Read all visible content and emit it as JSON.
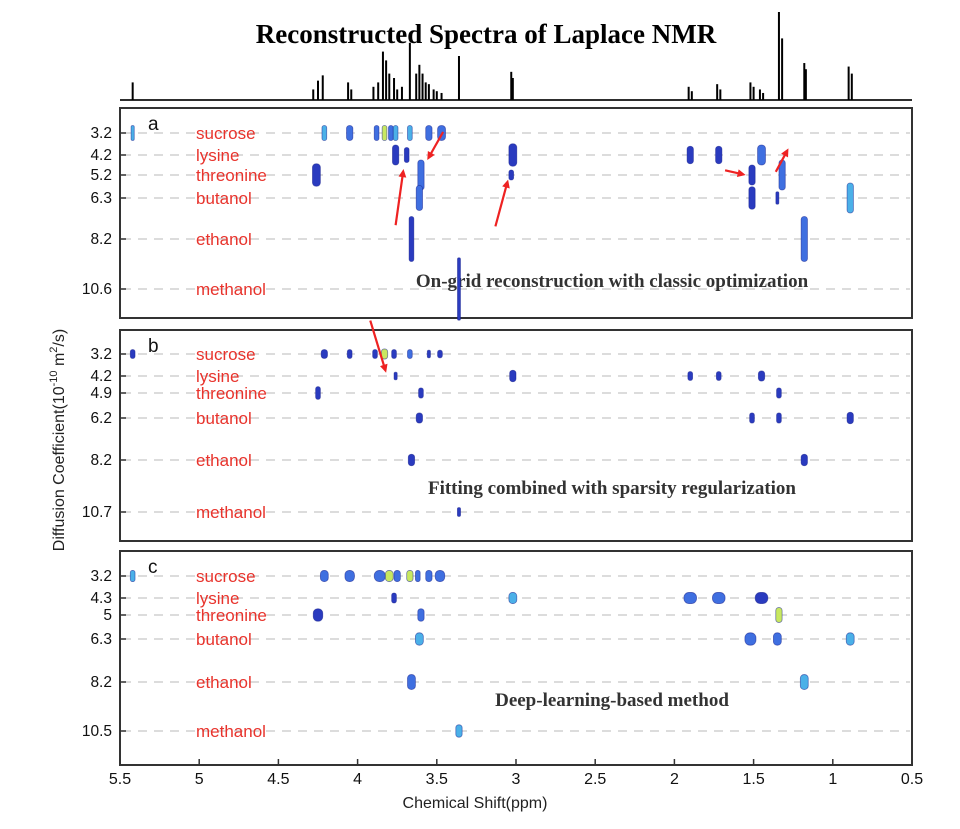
{
  "chart_data": {
    "type": "scatter",
    "title": "Reconstructed Spectra of Laplace NMR",
    "xlabel": "Chemical Shift(ppm)",
    "ylabel": "Diffusion Coefficient(10^-10 m^2/s)",
    "ylabel_parts": {
      "pre": "Diffusion Coefficient(10",
      "exp1": "-10",
      "mid": " m",
      "exp2": "2",
      "post": "/s)"
    },
    "xlim": [
      5.5,
      0.5
    ],
    "xticks": [
      5.5,
      5,
      4.5,
      4,
      3.5,
      3,
      2.5,
      2,
      1.5,
      1,
      0.5
    ],
    "xtick_labels": [
      "5.5",
      "5",
      "4.5",
      "4",
      "3.5",
      "3",
      "2.5",
      "2",
      "1.5",
      "1",
      "0.5"
    ],
    "colors": {
      "label": "#e8332c",
      "peak_dark": "#2a3bbf",
      "peak_mid": "#3f6fe0",
      "peak_light": "#4bb0e8",
      "peak_hot": "#c8e860",
      "arrow": "#ee2222",
      "grid": "#c8c8c8"
    },
    "spectrum_1d": [
      {
        "ppm": 5.42,
        "h": 0.2
      },
      {
        "ppm": 4.28,
        "h": 0.12
      },
      {
        "ppm": 4.25,
        "h": 0.22
      },
      {
        "ppm": 4.22,
        "h": 0.28
      },
      {
        "ppm": 4.06,
        "h": 0.2
      },
      {
        "ppm": 4.04,
        "h": 0.12
      },
      {
        "ppm": 3.9,
        "h": 0.15
      },
      {
        "ppm": 3.87,
        "h": 0.2
      },
      {
        "ppm": 3.84,
        "h": 0.55
      },
      {
        "ppm": 3.82,
        "h": 0.45
      },
      {
        "ppm": 3.8,
        "h": 0.3
      },
      {
        "ppm": 3.77,
        "h": 0.25
      },
      {
        "ppm": 3.75,
        "h": 0.12
      },
      {
        "ppm": 3.72,
        "h": 0.15
      },
      {
        "ppm": 3.67,
        "h": 0.65
      },
      {
        "ppm": 3.63,
        "h": 0.3
      },
      {
        "ppm": 3.61,
        "h": 0.4
      },
      {
        "ppm": 3.59,
        "h": 0.3
      },
      {
        "ppm": 3.57,
        "h": 0.2
      },
      {
        "ppm": 3.55,
        "h": 0.18
      },
      {
        "ppm": 3.52,
        "h": 0.12
      },
      {
        "ppm": 3.5,
        "h": 0.1
      },
      {
        "ppm": 3.47,
        "h": 0.08
      },
      {
        "ppm": 3.36,
        "h": 0.5
      },
      {
        "ppm": 3.03,
        "h": 0.32
      },
      {
        "ppm": 3.02,
        "h": 0.25
      },
      {
        "ppm": 1.91,
        "h": 0.15
      },
      {
        "ppm": 1.89,
        "h": 0.1
      },
      {
        "ppm": 1.73,
        "h": 0.18
      },
      {
        "ppm": 1.71,
        "h": 0.12
      },
      {
        "ppm": 1.52,
        "h": 0.2
      },
      {
        "ppm": 1.5,
        "h": 0.15
      },
      {
        "ppm": 1.46,
        "h": 0.12
      },
      {
        "ppm": 1.44,
        "h": 0.08
      },
      {
        "ppm": 1.34,
        "h": 1.0
      },
      {
        "ppm": 1.32,
        "h": 0.7
      },
      {
        "ppm": 1.18,
        "h": 0.42
      },
      {
        "ppm": 1.17,
        "h": 0.35
      },
      {
        "ppm": 0.9,
        "h": 0.38
      },
      {
        "ppm": 0.88,
        "h": 0.3
      }
    ],
    "panels": [
      {
        "letter": "a",
        "method": "On-grid reconstruction with classic optimization",
        "rows": [
          {
            "d": 3.2,
            "tick": "3.2",
            "compound": "sucrose"
          },
          {
            "d": 4.2,
            "tick": "4.2",
            "compound": "lysine"
          },
          {
            "d": 5.2,
            "tick": "5.2",
            "compound": "threonine"
          },
          {
            "d": 6.3,
            "tick": "6.3",
            "compound": "butanol"
          },
          {
            "d": 8.2,
            "tick": "8.2",
            "compound": "ethanol"
          },
          {
            "d": 10.6,
            "tick": "10.6",
            "compound": "methanol"
          }
        ],
        "peaks": [
          {
            "ppm": 5.42,
            "row": 0,
            "h": 0.6,
            "w": 0.02,
            "c": "light"
          },
          {
            "ppm": 4.21,
            "row": 0,
            "h": 0.6,
            "w": 0.03,
            "c": "light"
          },
          {
            "ppm": 4.05,
            "row": 0,
            "h": 0.6,
            "w": 0.04,
            "c": "mid"
          },
          {
            "ppm": 3.88,
            "row": 0,
            "h": 0.6,
            "w": 0.03,
            "c": "mid"
          },
          {
            "ppm": 3.83,
            "row": 0,
            "h": 0.6,
            "w": 0.03,
            "c": "hot"
          },
          {
            "ppm": 3.79,
            "row": 0,
            "h": 0.6,
            "w": 0.03,
            "c": "mid"
          },
          {
            "ppm": 3.76,
            "row": 0,
            "h": 0.6,
            "w": 0.03,
            "c": "light"
          },
          {
            "ppm": 3.67,
            "row": 0,
            "h": 0.6,
            "w": 0.03,
            "c": "light"
          },
          {
            "ppm": 3.55,
            "row": 0,
            "h": 0.6,
            "w": 0.04,
            "c": "mid"
          },
          {
            "ppm": 3.47,
            "row": 0,
            "h": 0.6,
            "w": 0.05,
            "c": "mid"
          },
          {
            "ppm": 3.76,
            "row": 1,
            "h": 0.8,
            "w": 0.04,
            "c": "dark"
          },
          {
            "ppm": 3.69,
            "row": 1,
            "h": 0.6,
            "w": 0.03,
            "c": "dark"
          },
          {
            "ppm": 3.02,
            "row": 1,
            "h": 0.9,
            "w": 0.05,
            "c": "dark"
          },
          {
            "ppm": 1.9,
            "row": 1,
            "h": 0.7,
            "w": 0.04,
            "c": "dark"
          },
          {
            "ppm": 1.72,
            "row": 1,
            "h": 0.7,
            "w": 0.04,
            "c": "dark"
          },
          {
            "ppm": 1.45,
            "row": 1,
            "h": 0.8,
            "w": 0.05,
            "c": "mid"
          },
          {
            "ppm": 4.26,
            "row": 2,
            "h": 0.9,
            "w": 0.05,
            "c": "dark"
          },
          {
            "ppm": 3.6,
            "row": 2,
            "h": 1.2,
            "w": 0.04,
            "c": "mid"
          },
          {
            "ppm": 3.03,
            "row": 2,
            "h": 0.4,
            "w": 0.03,
            "c": "dark"
          },
          {
            "ppm": 1.51,
            "row": 2,
            "h": 0.8,
            "w": 0.04,
            "c": "dark"
          },
          {
            "ppm": 1.32,
            "row": 2,
            "h": 1.2,
            "w": 0.04,
            "c": "mid"
          },
          {
            "ppm": 3.61,
            "row": 3,
            "h": 1.0,
            "w": 0.04,
            "c": "mid"
          },
          {
            "ppm": 1.51,
            "row": 3,
            "h": 0.9,
            "w": 0.04,
            "c": "dark"
          },
          {
            "ppm": 1.35,
            "row": 3,
            "h": 0.5,
            "w": 0.015,
            "c": "dark"
          },
          {
            "ppm": 0.89,
            "row": 3,
            "h": 1.2,
            "w": 0.04,
            "c": "light"
          },
          {
            "ppm": 3.66,
            "row": 4,
            "h": 1.8,
            "w": 0.03,
            "c": "dark"
          },
          {
            "ppm": 1.18,
            "row": 4,
            "h": 1.8,
            "w": 0.04,
            "c": "mid"
          },
          {
            "ppm": 3.36,
            "row": 5,
            "h": 2.5,
            "w": 0.012,
            "c": "dark"
          }
        ],
        "arrows": [
          {
            "ppm": 3.71,
            "row": 1.7,
            "dx": 0.05,
            "dy": 0.6
          },
          {
            "ppm": 3.56,
            "row": 1.25,
            "dx": -0.1,
            "dy": -0.3
          },
          {
            "ppm": 3.05,
            "row": 2.2,
            "dx": 0.08,
            "dy": 0.5
          },
          {
            "ppm": 1.55,
            "row": 2.0,
            "dx": 0.13,
            "dy": -0.05
          },
          {
            "ppm": 1.28,
            "row": 0.7,
            "dx": 0.08,
            "dy": 0.25
          }
        ]
      },
      {
        "letter": "b",
        "method": "Fitting combined with sparsity regularization",
        "rows": [
          {
            "d": 3.2,
            "tick": "3.2",
            "compound": "sucrose"
          },
          {
            "d": 4.2,
            "tick": "4.2",
            "compound": "lysine"
          },
          {
            "d": 4.9,
            "tick": "4.9",
            "compound": "threonine"
          },
          {
            "d": 6.2,
            "tick": "6.2",
            "compound": "butanol"
          },
          {
            "d": 8.2,
            "tick": "8.2",
            "compound": "ethanol"
          },
          {
            "d": 10.7,
            "tick": "10.7",
            "compound": "methanol"
          }
        ],
        "peaks": [
          {
            "ppm": 5.42,
            "row": 0,
            "h": 0.35,
            "w": 0.03,
            "c": "dark"
          },
          {
            "ppm": 4.21,
            "row": 0,
            "h": 0.35,
            "w": 0.04,
            "c": "dark"
          },
          {
            "ppm": 4.05,
            "row": 0,
            "h": 0.35,
            "w": 0.03,
            "c": "dark"
          },
          {
            "ppm": 3.89,
            "row": 0,
            "h": 0.35,
            "w": 0.03,
            "c": "dark"
          },
          {
            "ppm": 3.83,
            "row": 0,
            "h": 0.4,
            "w": 0.04,
            "c": "hot"
          },
          {
            "ppm": 3.77,
            "row": 0,
            "h": 0.35,
            "w": 0.03,
            "c": "dark"
          },
          {
            "ppm": 3.67,
            "row": 0,
            "h": 0.35,
            "w": 0.03,
            "c": "mid"
          },
          {
            "ppm": 3.55,
            "row": 0,
            "h": 0.3,
            "w": 0.02,
            "c": "dark"
          },
          {
            "ppm": 3.48,
            "row": 0,
            "h": 0.3,
            "w": 0.03,
            "c": "dark"
          },
          {
            "ppm": 3.76,
            "row": 1,
            "h": 0.3,
            "w": 0.02,
            "c": "dark"
          },
          {
            "ppm": 3.02,
            "row": 1,
            "h": 0.45,
            "w": 0.04,
            "c": "dark"
          },
          {
            "ppm": 1.9,
            "row": 1,
            "h": 0.35,
            "w": 0.03,
            "c": "dark"
          },
          {
            "ppm": 1.72,
            "row": 1,
            "h": 0.35,
            "w": 0.03,
            "c": "dark"
          },
          {
            "ppm": 1.45,
            "row": 1,
            "h": 0.4,
            "w": 0.04,
            "c": "dark"
          },
          {
            "ppm": 4.25,
            "row": 2,
            "h": 0.5,
            "w": 0.03,
            "c": "dark"
          },
          {
            "ppm": 3.6,
            "row": 2,
            "h": 0.4,
            "w": 0.03,
            "c": "dark"
          },
          {
            "ppm": 1.34,
            "row": 2,
            "h": 0.4,
            "w": 0.03,
            "c": "dark"
          },
          {
            "ppm": 3.61,
            "row": 3,
            "h": 0.4,
            "w": 0.04,
            "c": "dark"
          },
          {
            "ppm": 1.51,
            "row": 3,
            "h": 0.4,
            "w": 0.03,
            "c": "dark"
          },
          {
            "ppm": 1.34,
            "row": 3,
            "h": 0.4,
            "w": 0.03,
            "c": "dark"
          },
          {
            "ppm": 0.89,
            "row": 3,
            "h": 0.45,
            "w": 0.04,
            "c": "dark"
          },
          {
            "ppm": 3.66,
            "row": 4,
            "h": 0.45,
            "w": 0.04,
            "c": "dark"
          },
          {
            "ppm": 1.18,
            "row": 4,
            "h": 0.45,
            "w": 0.04,
            "c": "dark"
          },
          {
            "ppm": 3.36,
            "row": 5,
            "h": 0.35,
            "w": 0.02,
            "c": "dark"
          }
        ],
        "arrows": [
          {
            "ppm": 3.82,
            "row": 0.85,
            "dx": 0.1,
            "dy": -0.55
          }
        ]
      },
      {
        "letter": "c",
        "method": "Deep-learning-based method",
        "rows": [
          {
            "d": 3.2,
            "tick": "3.2",
            "compound": "sucrose"
          },
          {
            "d": 4.3,
            "tick": "4.3",
            "compound": "lysine"
          },
          {
            "d": 5.0,
            "tick": "5",
            "compound": "threonine"
          },
          {
            "d": 6.3,
            "tick": "6.3",
            "compound": "butanol"
          },
          {
            "d": 8.2,
            "tick": "8.2",
            "compound": "ethanol"
          },
          {
            "d": 10.5,
            "tick": "10.5",
            "compound": "methanol"
          }
        ],
        "peaks": [
          {
            "ppm": 5.42,
            "row": 0,
            "h": 0.45,
            "w": 0.03,
            "c": "light"
          },
          {
            "ppm": 4.21,
            "row": 0,
            "h": 0.45,
            "w": 0.05,
            "c": "mid"
          },
          {
            "ppm": 4.05,
            "row": 0,
            "h": 0.45,
            "w": 0.06,
            "c": "mid"
          },
          {
            "ppm": 3.86,
            "row": 0,
            "h": 0.45,
            "w": 0.07,
            "c": "mid"
          },
          {
            "ppm": 3.8,
            "row": 0,
            "h": 0.45,
            "w": 0.05,
            "c": "hot"
          },
          {
            "ppm": 3.75,
            "row": 0,
            "h": 0.45,
            "w": 0.04,
            "c": "mid"
          },
          {
            "ppm": 3.67,
            "row": 0,
            "h": 0.45,
            "w": 0.04,
            "c": "hot"
          },
          {
            "ppm": 3.62,
            "row": 0,
            "h": 0.45,
            "w": 0.03,
            "c": "mid"
          },
          {
            "ppm": 3.55,
            "row": 0,
            "h": 0.45,
            "w": 0.04,
            "c": "mid"
          },
          {
            "ppm": 3.48,
            "row": 0,
            "h": 0.45,
            "w": 0.06,
            "c": "mid"
          },
          {
            "ppm": 3.77,
            "row": 1,
            "h": 0.4,
            "w": 0.03,
            "c": "dark"
          },
          {
            "ppm": 3.02,
            "row": 1,
            "h": 0.45,
            "w": 0.05,
            "c": "light"
          },
          {
            "ppm": 1.9,
            "row": 1,
            "h": 0.45,
            "w": 0.08,
            "c": "mid"
          },
          {
            "ppm": 1.72,
            "row": 1,
            "h": 0.45,
            "w": 0.08,
            "c": "mid"
          },
          {
            "ppm": 1.45,
            "row": 1,
            "h": 0.45,
            "w": 0.08,
            "c": "dark"
          },
          {
            "ppm": 4.25,
            "row": 2,
            "h": 0.5,
            "w": 0.06,
            "c": "dark"
          },
          {
            "ppm": 3.6,
            "row": 2,
            "h": 0.5,
            "w": 0.04,
            "c": "mid"
          },
          {
            "ppm": 1.34,
            "row": 2,
            "h": 0.6,
            "w": 0.04,
            "c": "hot"
          },
          {
            "ppm": 3.61,
            "row": 3,
            "h": 0.5,
            "w": 0.05,
            "c": "light"
          },
          {
            "ppm": 1.52,
            "row": 3,
            "h": 0.5,
            "w": 0.07,
            "c": "mid"
          },
          {
            "ppm": 1.35,
            "row": 3,
            "h": 0.5,
            "w": 0.05,
            "c": "mid"
          },
          {
            "ppm": 0.89,
            "row": 3,
            "h": 0.5,
            "w": 0.05,
            "c": "light"
          },
          {
            "ppm": 3.66,
            "row": 4,
            "h": 0.6,
            "w": 0.05,
            "c": "mid"
          },
          {
            "ppm": 1.18,
            "row": 4,
            "h": 0.6,
            "w": 0.05,
            "c": "light"
          },
          {
            "ppm": 3.36,
            "row": 5,
            "h": 0.5,
            "w": 0.04,
            "c": "light"
          }
        ],
        "arrows": []
      }
    ]
  }
}
